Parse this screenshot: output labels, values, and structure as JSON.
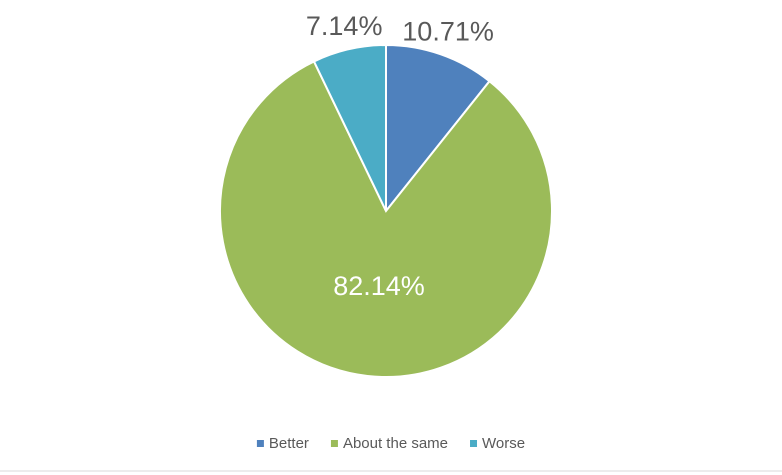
{
  "chart_data": {
    "type": "pie",
    "categories": [
      "Better",
      "About the same",
      "Worse"
    ],
    "values": [
      10.71,
      82.14,
      7.14
    ],
    "value_labels": [
      "10.71%",
      "82.14%",
      "7.14%"
    ],
    "colors": [
      "#4f81bd",
      "#9bbb59",
      "#4bacc6"
    ],
    "legend": "bottom"
  }
}
